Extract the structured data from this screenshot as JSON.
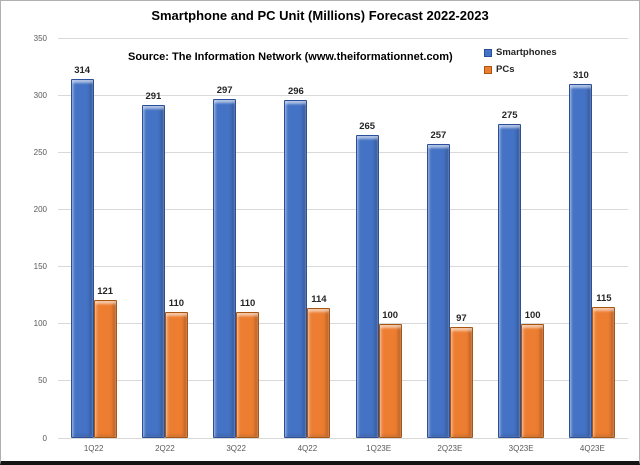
{
  "title": "Smartphone and PC Unit (Millions) Forecast 2022-2023",
  "source_note": "Source: The Information Network (www.theiformationnet.com)",
  "colors": {
    "smartphones_fill": "#4472C4",
    "smartphones_border": "#2B4F9B",
    "pcs_fill": "#ED7D31",
    "pcs_border": "#A85511",
    "gridline": "#D9D9D9",
    "axis_text": "#595959",
    "frame_bottom": "#141414"
  },
  "chart_data": {
    "type": "bar",
    "title": "Smartphone and PC Unit (Millions) Forecast 2022-2023",
    "categories": [
      "1Q22",
      "2Q22",
      "3Q22",
      "4Q22",
      "1Q23E",
      "2Q23E",
      "3Q23E",
      "4Q23E"
    ],
    "series": [
      {
        "name": "Smartphones",
        "color": "#4472C4",
        "border_color": "#2B4F9B",
        "values": [
          314,
          291,
          297,
          296,
          265,
          257,
          275,
          310
        ]
      },
      {
        "name": "PCs",
        "color": "#ED7D31",
        "border_color": "#A85511",
        "values": [
          121,
          110,
          110,
          114,
          100,
          97,
          100,
          115
        ]
      }
    ],
    "xlabel": "",
    "ylabel": "",
    "ylim": [
      0,
      350
    ],
    "ytick_step": 50,
    "grid": true,
    "data_labels": true,
    "legend_position": "top-right"
  }
}
